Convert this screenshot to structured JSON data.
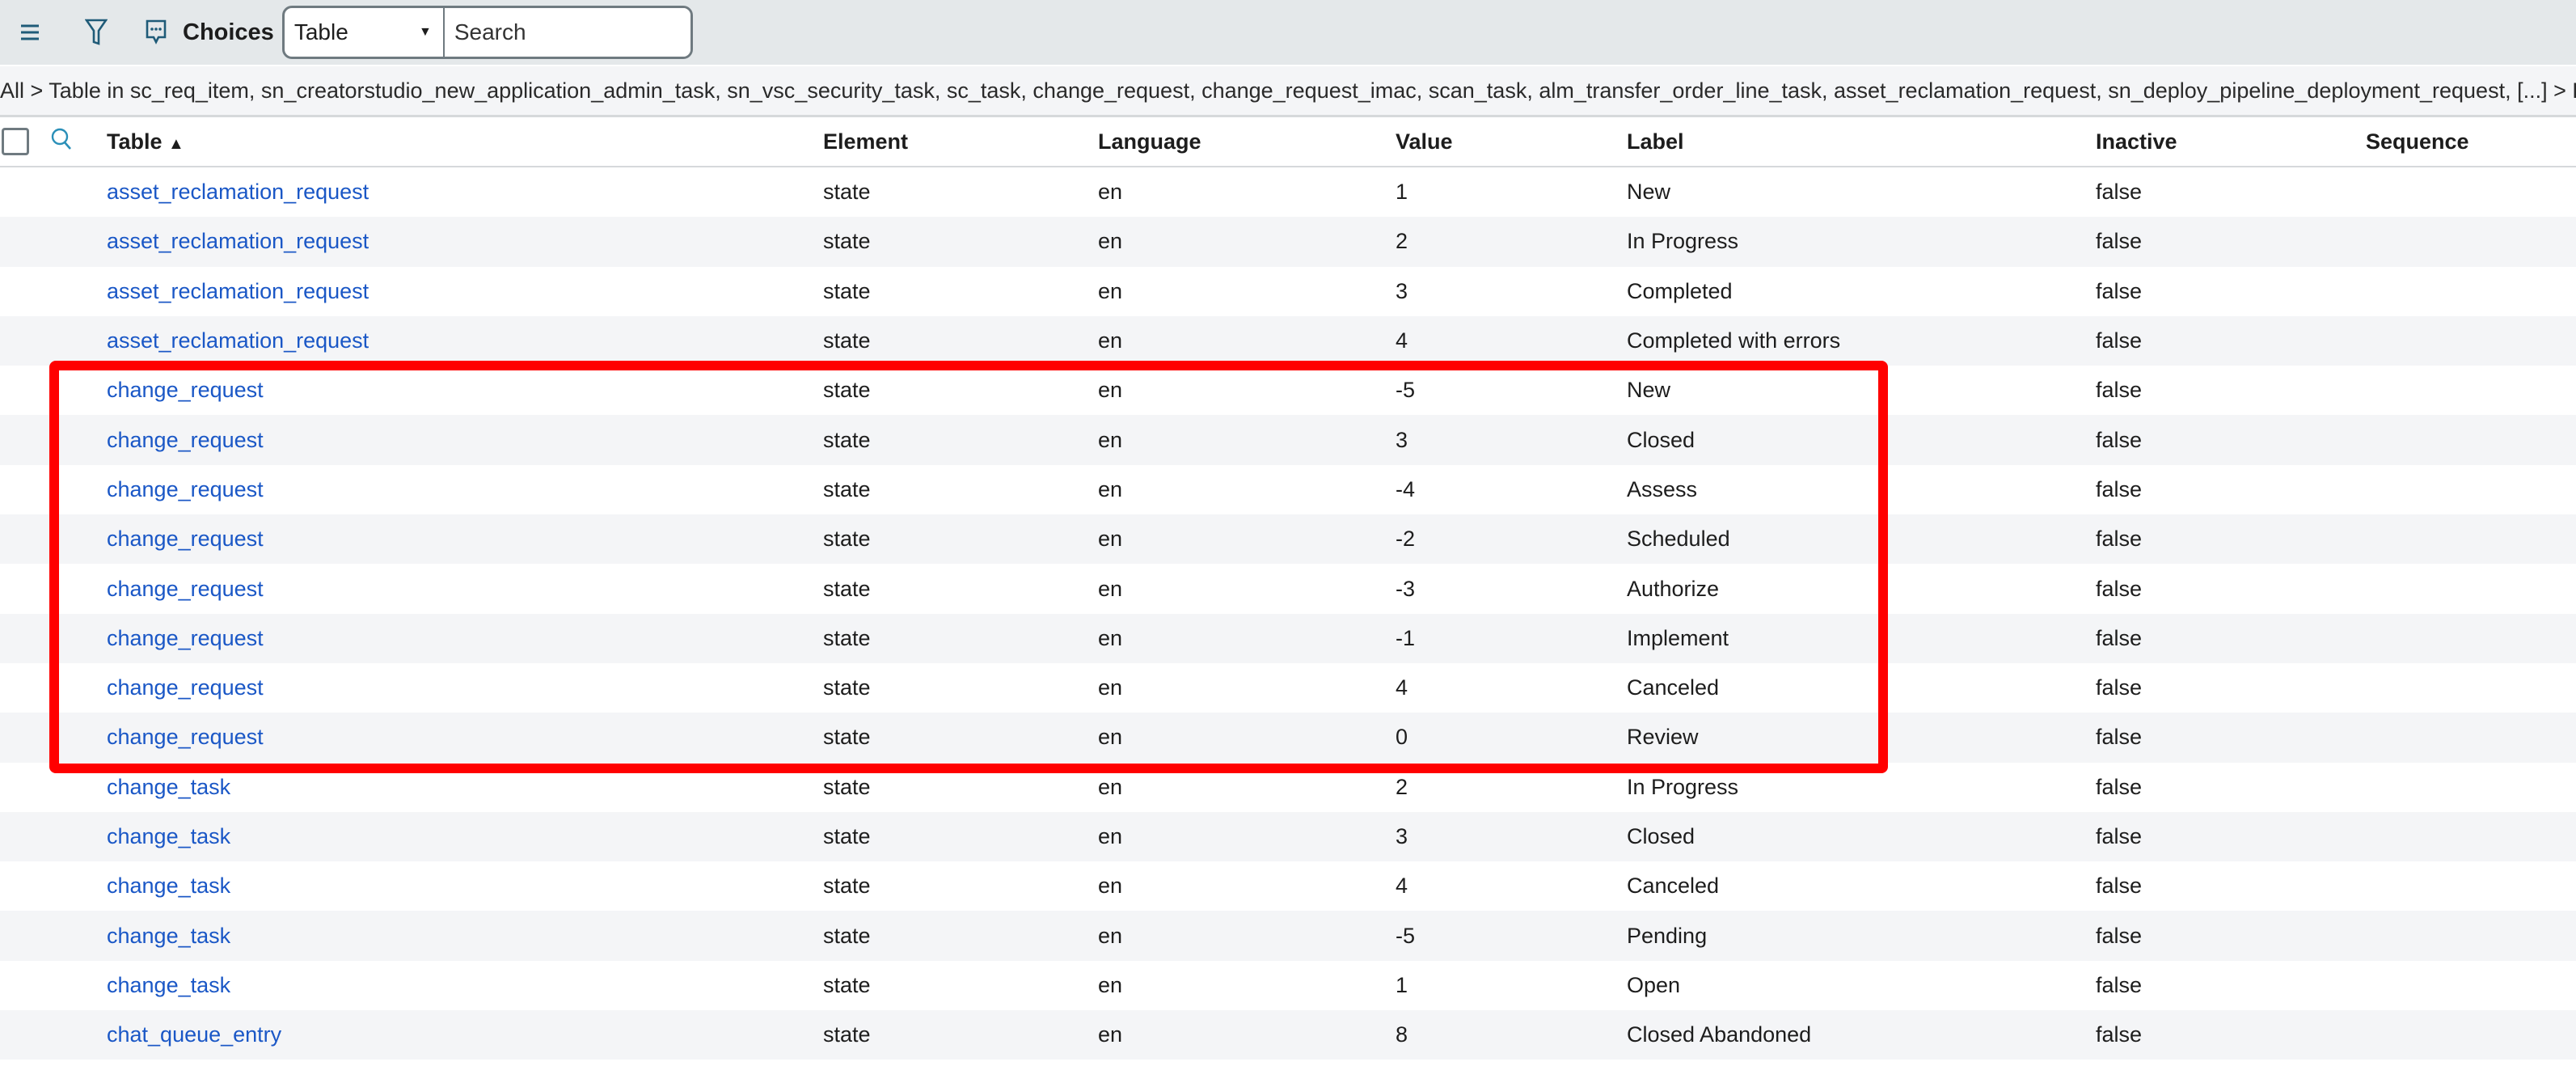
{
  "toolbar": {
    "title": "Choices",
    "field_select": "Table",
    "search_placeholder": "Search",
    "icons": [
      "menu-icon",
      "filter-icon",
      "chat-icon"
    ]
  },
  "breadcrumb": "All > Table in sc_req_item, sn_creatorstudio_new_application_admin_task, sn_vsc_security_task, sc_task, change_request, change_request_imac, scan_task, alm_transfer_order_line_task, asset_reclamation_request, sn_deploy_pipeline_deployment_request, [...] > El",
  "columns": {
    "table": "Table",
    "sort_indicator": "▲",
    "element": "Element",
    "language": "Language",
    "value": "Value",
    "label": "Label",
    "inactive": "Inactive",
    "sequence": "Sequence"
  },
  "rows": [
    {
      "table": "asset_reclamation_request",
      "element": "state",
      "language": "en",
      "value": "1",
      "label": "New",
      "inactive": "false",
      "sequence": ""
    },
    {
      "table": "asset_reclamation_request",
      "element": "state",
      "language": "en",
      "value": "2",
      "label": "In Progress",
      "inactive": "false",
      "sequence": ""
    },
    {
      "table": "asset_reclamation_request",
      "element": "state",
      "language": "en",
      "value": "3",
      "label": "Completed",
      "inactive": "false",
      "sequence": ""
    },
    {
      "table": "asset_reclamation_request",
      "element": "state",
      "language": "en",
      "value": "4",
      "label": "Completed with errors",
      "inactive": "false",
      "sequence": ""
    },
    {
      "table": "change_request",
      "element": "state",
      "language": "en",
      "value": "-5",
      "label": "New",
      "inactive": "false",
      "sequence": ""
    },
    {
      "table": "change_request",
      "element": "state",
      "language": "en",
      "value": "3",
      "label": "Closed",
      "inactive": "false",
      "sequence": ""
    },
    {
      "table": "change_request",
      "element": "state",
      "language": "en",
      "value": "-4",
      "label": "Assess",
      "inactive": "false",
      "sequence": ""
    },
    {
      "table": "change_request",
      "element": "state",
      "language": "en",
      "value": "-2",
      "label": "Scheduled",
      "inactive": "false",
      "sequence": ""
    },
    {
      "table": "change_request",
      "element": "state",
      "language": "en",
      "value": "-3",
      "label": "Authorize",
      "inactive": "false",
      "sequence": ""
    },
    {
      "table": "change_request",
      "element": "state",
      "language": "en",
      "value": "-1",
      "label": "Implement",
      "inactive": "false",
      "sequence": ""
    },
    {
      "table": "change_request",
      "element": "state",
      "language": "en",
      "value": "4",
      "label": "Canceled",
      "inactive": "false",
      "sequence": ""
    },
    {
      "table": "change_request",
      "element": "state",
      "language": "en",
      "value": "0",
      "label": "Review",
      "inactive": "false",
      "sequence": ""
    },
    {
      "table": "change_task",
      "element": "state",
      "language": "en",
      "value": "2",
      "label": "In Progress",
      "inactive": "false",
      "sequence": ""
    },
    {
      "table": "change_task",
      "element": "state",
      "language": "en",
      "value": "3",
      "label": "Closed",
      "inactive": "false",
      "sequence": ""
    },
    {
      "table": "change_task",
      "element": "state",
      "language": "en",
      "value": "4",
      "label": "Canceled",
      "inactive": "false",
      "sequence": ""
    },
    {
      "table": "change_task",
      "element": "state",
      "language": "en",
      "value": "-5",
      "label": "Pending",
      "inactive": "false",
      "sequence": ""
    },
    {
      "table": "change_task",
      "element": "state",
      "language": "en",
      "value": "1",
      "label": "Open",
      "inactive": "false",
      "sequence": ""
    },
    {
      "table": "chat_queue_entry",
      "element": "state",
      "language": "en",
      "value": "8",
      "label": "Closed Abandoned",
      "inactive": "false",
      "sequence": ""
    }
  ],
  "highlight": {
    "color": "#ff0000",
    "rows": "change_request"
  }
}
